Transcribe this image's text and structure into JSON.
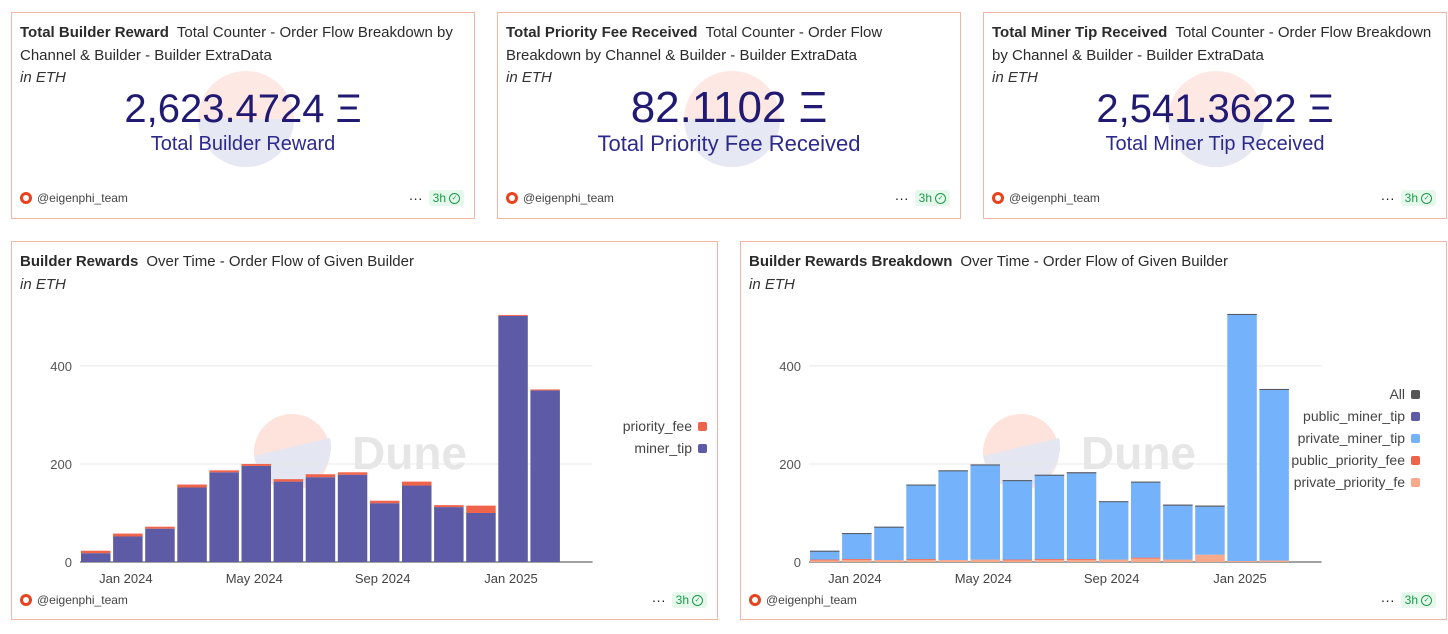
{
  "colors": {
    "border": "#f3b6a6",
    "counter_text": "#211a73",
    "miner_tip": "#5e5ba6",
    "priority_fee": "#f0634b",
    "public_miner_tip": "#5e5ba6",
    "private_miner_tip": "#74b2fb",
    "public_priority_fee": "#f0634b",
    "private_priority_fee": "#f7a98c",
    "all": "#555555",
    "badge_bg": "#e6f7ec",
    "badge_text": "#1d9a4a"
  },
  "counters": [
    {
      "title": "Total Builder Reward",
      "subtitle": "Total Counter - Order Flow Breakdown by Channel & Builder - Builder ExtraData",
      "unit": "in ETH",
      "value": "2,623.4724 Ξ",
      "label": "Total Builder Reward",
      "author": "@eigenphi_team",
      "more": "···",
      "age": "3h"
    },
    {
      "title": "Total Priority Fee Received",
      "subtitle": "Total Counter - Order Flow Breakdown by Channel & Builder - Builder ExtraData",
      "unit": "in ETH",
      "value": "82.1102 Ξ",
      "label": "Total Priority Fee Received",
      "author": "@eigenphi_team",
      "more": "···",
      "age": "3h"
    },
    {
      "title": "Total Miner Tip Received",
      "subtitle": "Total Counter - Order Flow Breakdown by Channel & Builder - Builder ExtraData",
      "unit": "in ETH",
      "value": "2,541.3622 Ξ",
      "label": "Total Miner Tip Received",
      "author": "@eigenphi_team",
      "more": "···",
      "age": "3h"
    }
  ],
  "charts_meta": [
    {
      "title": "Builder Rewards",
      "subtitle": "Over Time - Order Flow of Given Builder",
      "unit": "in ETH",
      "watermark": "Dune",
      "author": "@eigenphi_team",
      "more": "···",
      "age": "3h"
    },
    {
      "title": "Builder Rewards Breakdown",
      "subtitle": "Over Time - Order Flow of Given Builder",
      "unit": "in ETH",
      "watermark": "Dune",
      "author": "@eigenphi_team",
      "more": "···",
      "age": "3h"
    }
  ],
  "chart_data": [
    {
      "type": "bar",
      "stacked": true,
      "title": "Builder Rewards",
      "xlabel": "",
      "ylabel": "",
      "x_tick_labels": [
        "Jan 2024",
        "May 2024",
        "Sep 2024",
        "Jan 2025"
      ],
      "y_ticks": [
        0,
        200,
        400
      ],
      "ylim": [
        0,
        510
      ],
      "grid": true,
      "legend_position": "right",
      "categories": [
        "2023-12",
        "2024-01",
        "2024-02",
        "2024-03",
        "2024-04",
        "2024-05",
        "2024-06",
        "2024-07",
        "2024-08",
        "2024-09",
        "2024-10",
        "2024-11",
        "2024-12",
        "2025-01",
        "2025-02",
        "2025-03"
      ],
      "series": [
        {
          "name": "miner_tip",
          "values": [
            18,
            52,
            68,
            152,
            183,
            196,
            164,
            173,
            178,
            120,
            156,
            112,
            100,
            502,
            350,
            0
          ]
        },
        {
          "name": "priority_fee",
          "values": [
            5,
            6,
            4,
            6,
            4,
            4,
            5,
            6,
            5,
            5,
            8,
            4,
            15,
            2,
            2,
            0
          ]
        }
      ]
    },
    {
      "type": "bar",
      "stacked": true,
      "title": "Builder Rewards Breakdown",
      "xlabel": "",
      "ylabel": "",
      "x_tick_labels": [
        "Jan 2024",
        "May 2024",
        "Sep 2024",
        "Jan 2025"
      ],
      "y_ticks": [
        0,
        200,
        400
      ],
      "ylim": [
        0,
        510
      ],
      "grid": true,
      "legend_position": "right",
      "legend_entries": [
        "All",
        "public_miner_tip",
        "private_miner_tip",
        "public_priority_fee",
        "private_priority_fe"
      ],
      "categories": [
        "2023-12",
        "2024-01",
        "2024-02",
        "2024-03",
        "2024-04",
        "2024-05",
        "2024-06",
        "2024-07",
        "2024-08",
        "2024-09",
        "2024-10",
        "2024-11",
        "2024-12",
        "2025-01",
        "2025-02",
        "2025-03"
      ],
      "series": [
        {
          "name": "private_priority_fee",
          "values": [
            4,
            5,
            4,
            5,
            4,
            5,
            4,
            5,
            5,
            5,
            8,
            5,
            15,
            2,
            3,
            0
          ]
        },
        {
          "name": "public_priority_fee",
          "values": [
            1,
            1,
            0,
            1,
            0,
            0,
            1,
            1,
            1,
            0,
            1,
            0,
            0,
            0,
            0,
            0
          ]
        },
        {
          "name": "private_miner_tip",
          "values": [
            18,
            53,
            68,
            152,
            183,
            194,
            162,
            172,
            175,
            119,
            155,
            110,
            98,
            504,
            350,
            0
          ]
        },
        {
          "name": "public_miner_tip",
          "values": [
            0,
            0,
            0,
            0,
            0,
            0,
            0,
            0,
            2,
            0,
            0,
            2,
            2,
            0,
            0,
            0
          ]
        }
      ]
    }
  ]
}
